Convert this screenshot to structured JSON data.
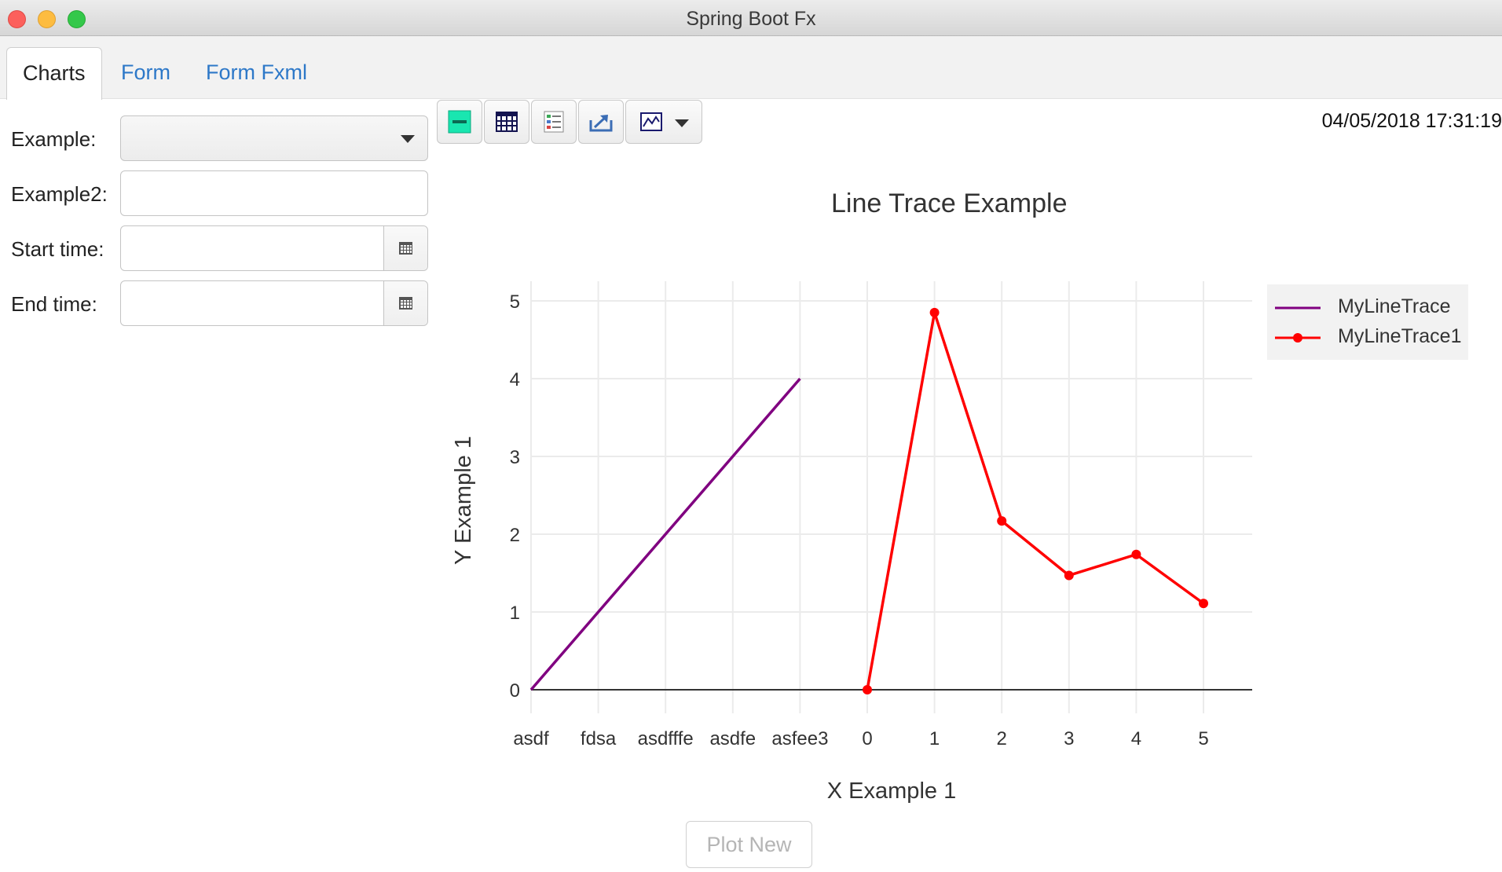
{
  "window": {
    "title": "Spring Boot Fx"
  },
  "tabs": [
    {
      "label": "Charts",
      "active": true
    },
    {
      "label": "Form",
      "active": false
    },
    {
      "label": "Form Fxml",
      "active": false
    }
  ],
  "form": {
    "example_label": "Example:",
    "example_value": "",
    "example2_label": "Example2:",
    "example2_value": "",
    "start_label": "Start time:",
    "start_value": "",
    "end_label": "End time:",
    "end_value": ""
  },
  "toolbar": {
    "icons": [
      "json-icon",
      "table-icon",
      "list-icon",
      "export-icon",
      "chart-type-icon"
    ]
  },
  "timestamp": "04/05/2018 17:31:19",
  "plot_new_label": "Plot New",
  "chart_data": {
    "type": "line",
    "title": "Line Trace Example",
    "xlabel": "X Example 1",
    "ylabel": "Y Example 1",
    "x_tick_labels": [
      "asdf",
      "fdsa",
      "asdfffe",
      "asdfe",
      "asfee3",
      "0",
      "1",
      "2",
      "3",
      "4",
      "5"
    ],
    "y_tick_labels": [
      "0",
      "1",
      "2",
      "3",
      "4",
      "5"
    ],
    "ylim": [
      0,
      5
    ],
    "grid": true,
    "legend_placement": "top-right",
    "series": [
      {
        "name": "MyLineTrace",
        "color": "#800080",
        "markers": false,
        "x": [
          "asdf",
          "fdsa",
          "asdfffe",
          "asdfe",
          "asfee3"
        ],
        "y": [
          0,
          1,
          2,
          3,
          4
        ]
      },
      {
        "name": "MyLineTrace1",
        "color": "#ff0000",
        "markers": true,
        "x": [
          "0",
          "1",
          "2",
          "3",
          "4",
          "5"
        ],
        "y": [
          0,
          4.85,
          2.17,
          1.47,
          1.74,
          1.11
        ]
      }
    ]
  }
}
